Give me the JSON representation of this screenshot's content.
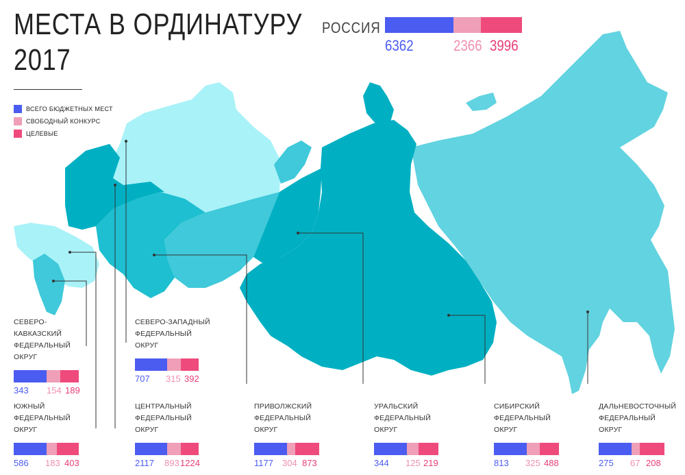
{
  "title": {
    "line1": "МЕСТА В ОРДИНАТУРУ",
    "line2": "2017"
  },
  "colors": {
    "total": "#4b5cf0",
    "free": "#ef9fb7",
    "target": "#ef4a7c",
    "map_dark": "#00b0c2",
    "map_mid": "#3ec9d9",
    "map_light": "#9ff0f7"
  },
  "legend": [
    {
      "label": "ВСЕГО БЮДЖЕТНЫХ МЕСТ",
      "color": "#4b5cf0"
    },
    {
      "label": "СВОБОДНЫЙ КОНКУРС",
      "color": "#ef9fb7"
    },
    {
      "label": "ЦЕЛЕВЫЕ",
      "color": "#ef4a7c"
    }
  ],
  "russia": {
    "label": "РОССИЯ",
    "total": "6362",
    "free": "2366",
    "target": "3996"
  },
  "chart_data": {
    "type": "bar",
    "title": "МЕСТА В ОРДИНАТУРУ 2017",
    "series_names": [
      "ВСЕГО БЮДЖЕТНЫХ МЕСТ",
      "СВОБОДНЫЙ КОНКУРС",
      "ЦЕЛЕВЫЕ"
    ],
    "totals": {
      "name": "РОССИЯ",
      "total": 6362,
      "free": 2366,
      "target": 3996
    },
    "districts": [
      {
        "line1": "СЕВЕРО-КАВКАЗСКИЙ",
        "line2": "ФЕДЕРАЛЬНЫЙ ОКРУГ",
        "total": 343,
        "free": 154,
        "target": 189
      },
      {
        "line1": "СЕВЕРО-ЗАПАДНЫЙ",
        "line2": "ФЕДЕРАЛЬНЫЙ ОКРУГ",
        "total": 707,
        "free": 315,
        "target": 392
      },
      {
        "line1": "ЮЖНЫЙ",
        "line2": "ФЕДЕРАЛЬНЫЙ ОКРУГ",
        "total": 586,
        "free": 183,
        "target": 403
      },
      {
        "line1": "ЦЕНТРАЛЬНЫЙ",
        "line2": "ФЕДЕРАЛЬНЫЙ ОКРУГ",
        "total": 2117,
        "free": 893,
        "target": 1224
      },
      {
        "line1": "ПРИВОЛЖСКИЙ",
        "line2": "ФЕДЕРАЛЬНЫЙ ОКРУГ",
        "total": 1177,
        "free": 304,
        "target": 873
      },
      {
        "line1": "УРАЛЬСКИЙ",
        "line2": "ФЕДЕРАЛЬНЫЙ ОКРУГ",
        "total": 344,
        "free": 125,
        "target": 219
      },
      {
        "line1": "СИБИРСКИЙ",
        "line2": "ФЕДЕРАЛЬНЫЙ ОКРУГ",
        "total": 813,
        "free": 325,
        "target": 488
      },
      {
        "line1": "ДАЛЬНЕВОСТОЧНЫЙ",
        "line2": "ФЕДЕРАЛЬНЫЙ ОКРУГ",
        "total": 275,
        "free": 67,
        "target": 208
      }
    ]
  }
}
